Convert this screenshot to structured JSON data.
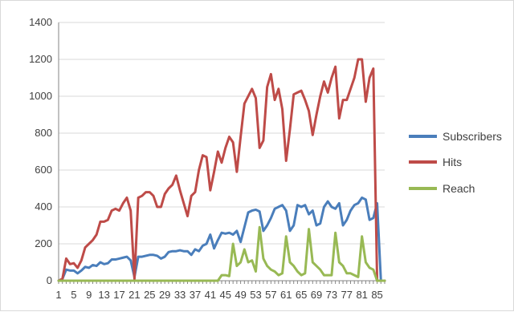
{
  "chart_data": {
    "type": "line",
    "title": "",
    "xlabel": "",
    "ylabel": "",
    "ylim": [
      0,
      1400
    ],
    "yticks": [
      0,
      200,
      400,
      600,
      800,
      1000,
      1200,
      1400
    ],
    "grid": true,
    "legend": "right",
    "x": [
      1,
      2,
      3,
      4,
      5,
      6,
      7,
      8,
      9,
      10,
      11,
      12,
      13,
      14,
      15,
      16,
      17,
      18,
      19,
      20,
      21,
      22,
      23,
      24,
      25,
      26,
      27,
      28,
      29,
      30,
      31,
      32,
      33,
      34,
      35,
      36,
      37,
      38,
      39,
      40,
      41,
      42,
      43,
      44,
      45,
      46,
      47,
      48,
      49,
      50,
      51,
      52,
      53,
      54,
      55,
      56,
      57,
      58,
      59,
      60,
      61,
      62,
      63,
      64,
      65,
      66,
      67,
      68,
      69,
      70,
      71,
      72,
      73,
      74,
      75,
      76,
      77,
      78,
      79,
      80,
      81,
      82,
      83,
      84,
      85,
      86,
      87
    ],
    "xtick_labels": [
      "1",
      "5",
      "9",
      "13",
      "17",
      "21",
      "25",
      "29",
      "33",
      "37",
      "41",
      "45",
      "49",
      "53",
      "57",
      "61",
      "65",
      "69",
      "73",
      "77",
      "81",
      "85"
    ],
    "xtick_positions": [
      1,
      5,
      9,
      13,
      17,
      21,
      25,
      29,
      33,
      37,
      41,
      45,
      49,
      53,
      57,
      61,
      65,
      69,
      73,
      77,
      81,
      85
    ],
    "series": [
      {
        "name": "Subscribers",
        "color": "#4a7ebb",
        "values": [
          0,
          10,
          60,
          55,
          55,
          40,
          55,
          75,
          70,
          85,
          80,
          100,
          90,
          95,
          115,
          115,
          120,
          125,
          130,
          110,
          20,
          130,
          130,
          135,
          140,
          140,
          135,
          120,
          130,
          155,
          160,
          160,
          165,
          160,
          160,
          140,
          170,
          160,
          190,
          200,
          250,
          175,
          220,
          260,
          255,
          260,
          250,
          270,
          210,
          290,
          370,
          380,
          385,
          375,
          270,
          300,
          340,
          390,
          400,
          410,
          380,
          270,
          300,
          410,
          400,
          410,
          360,
          380,
          300,
          310,
          400,
          430,
          400,
          390,
          420,
          300,
          330,
          380,
          410,
          420,
          450,
          440,
          330,
          340,
          420,
          0,
          0
        ]
      },
      {
        "name": "Hits",
        "color": "#be4b48",
        "values": [
          0,
          10,
          120,
          90,
          95,
          70,
          110,
          180,
          200,
          220,
          250,
          320,
          320,
          330,
          380,
          390,
          380,
          420,
          450,
          380,
          10,
          450,
          460,
          480,
          480,
          460,
          400,
          400,
          470,
          500,
          520,
          570,
          490,
          420,
          350,
          460,
          480,
          600,
          680,
          670,
          490,
          590,
          700,
          640,
          720,
          780,
          750,
          590,
          780,
          960,
          1000,
          1040,
          990,
          720,
          760,
          1050,
          1120,
          980,
          1040,
          930,
          650,
          820,
          1010,
          1020,
          1030,
          980,
          920,
          790,
          900,
          1000,
          1080,
          1020,
          1100,
          1160,
          880,
          980,
          980,
          1040,
          1100,
          1200,
          1200,
          970,
          1100,
          1150,
          0,
          0,
          0
        ]
      },
      {
        "name": "Reach",
        "color": "#98b954",
        "values": [
          0,
          0,
          0,
          0,
          0,
          0,
          0,
          0,
          0,
          0,
          0,
          0,
          0,
          0,
          0,
          0,
          0,
          0,
          0,
          0,
          0,
          0,
          0,
          0,
          0,
          0,
          0,
          0,
          0,
          0,
          0,
          0,
          0,
          0,
          0,
          0,
          0,
          0,
          0,
          0,
          0,
          0,
          0,
          30,
          30,
          25,
          200,
          80,
          100,
          170,
          100,
          110,
          50,
          290,
          120,
          80,
          60,
          50,
          30,
          40,
          240,
          100,
          80,
          50,
          30,
          40,
          280,
          100,
          80,
          60,
          30,
          30,
          30,
          260,
          100,
          80,
          40,
          40,
          30,
          20,
          240,
          100,
          70,
          60,
          0,
          0,
          0
        ]
      }
    ]
  }
}
